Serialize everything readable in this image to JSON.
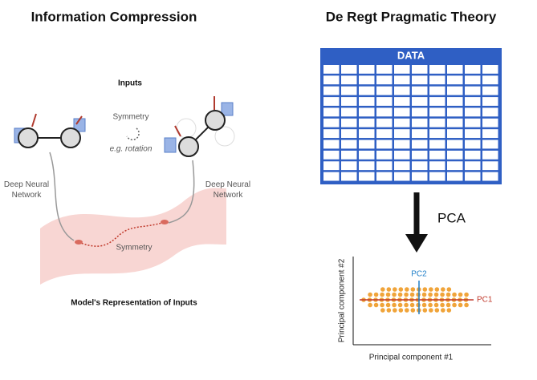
{
  "left_panel": {
    "title": "Information Compression",
    "inputs_label": "Inputs",
    "symmetry_label": "Symmetry",
    "symmetry_example": "e.g. rotation",
    "left_network_label": [
      "Deep Neural",
      "Network"
    ],
    "right_network_label": [
      "Deep Neural",
      "Network"
    ],
    "latent_symmetry_label": "Symmetry",
    "representation_label": "Model's Representation of Inputs"
  },
  "right_panel": {
    "title": "De Regt Pragmatic Theory",
    "table_header": "DATA",
    "arrow_label": "PCA",
    "pc2_label": "PC2",
    "pc1_label": "PC1",
    "y_axis_label": "Principal component #2",
    "x_axis_label": "Principal component #1"
  }
}
